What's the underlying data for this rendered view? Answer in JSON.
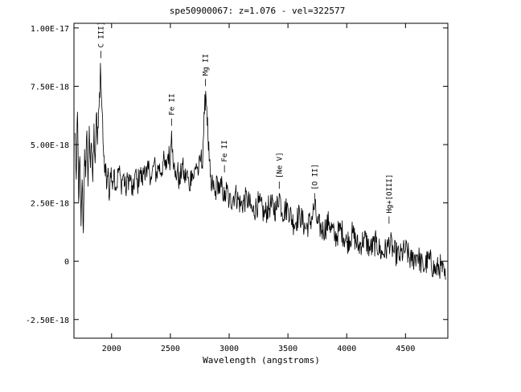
{
  "chart_data": {
    "type": "line",
    "title": "spe50900067: z=1.076 - vel=322577",
    "xlabel": "Wavelength (angstroms)",
    "ylabel": "",
    "xlim": [
      1680,
      4860
    ],
    "ylim": [
      -3.3e-18,
      1.02e-17
    ],
    "xticks": [
      {
        "value": 2000,
        "label": "2000"
      },
      {
        "value": 2500,
        "label": "2500"
      },
      {
        "value": 3000,
        "label": "3000"
      },
      {
        "value": 3500,
        "label": "3500"
      },
      {
        "value": 4000,
        "label": "4000"
      },
      {
        "value": 4500,
        "label": "4500"
      }
    ],
    "yticks": [
      {
        "value": 1e-17,
        "label": "1.00E-17"
      },
      {
        "value": 7.5e-18,
        "label": "7.50E-18"
      },
      {
        "value": 5e-18,
        "label": "5.00E-18"
      },
      {
        "value": 2.5e-18,
        "label": "2.50E-18"
      },
      {
        "value": 0,
        "label": "0"
      },
      {
        "value": -2.5e-18,
        "label": "-2.50E-18"
      }
    ],
    "grid": false,
    "legend": "none",
    "series": [
      {
        "color": "#000000",
        "x": [
          1690,
          1700,
          1710,
          1720,
          1730,
          1740,
          1750,
          1760,
          1770,
          1780,
          1790,
          1800,
          1810,
          1820,
          1830,
          1840,
          1850,
          1860,
          1870,
          1880,
          1890,
          1900,
          1905,
          1910,
          1915,
          1920,
          1930,
          1940,
          1950,
          1960,
          1970,
          1980,
          1990,
          2000,
          2020,
          2040,
          2060,
          2080,
          2100,
          2120,
          2140,
          2160,
          2180,
          2200,
          2220,
          2240,
          2260,
          2280,
          2300,
          2320,
          2340,
          2360,
          2380,
          2400,
          2420,
          2440,
          2460,
          2480,
          2500,
          2510,
          2520,
          2530,
          2540,
          2560,
          2580,
          2600,
          2620,
          2640,
          2660,
          2680,
          2700,
          2720,
          2740,
          2760,
          2770,
          2780,
          2790,
          2800,
          2810,
          2820,
          2830,
          2840,
          2850,
          2860,
          2880,
          2900,
          2920,
          2940,
          2960,
          2980,
          3000,
          3050,
          3100,
          3150,
          3200,
          3250,
          3300,
          3350,
          3400,
          3426,
          3450,
          3500,
          3550,
          3600,
          3650,
          3700,
          3727,
          3750,
          3800,
          3850,
          3900,
          3950,
          4000,
          4050,
          4100,
          4150,
          4200,
          4250,
          4300,
          4350,
          4360,
          4400,
          4450,
          4500,
          4550,
          4600,
          4650,
          4700,
          4750,
          4800,
          4840
        ],
        "y": [
          5.5e-18,
          3.5e-18,
          6.4e-18,
          2.5e-18,
          4.5e-18,
          1.5e-18,
          3.5e-18,
          1.2e-18,
          4.8e-18,
          3.6e-18,
          5.6e-18,
          3.2e-18,
          5.8e-18,
          4e-18,
          5e-18,
          3.4e-18,
          5.9e-18,
          4.2e-18,
          6.3e-18,
          5e-18,
          6.5e-18,
          7e-18,
          8.5e-18,
          7.6e-18,
          6.8e-18,
          6.4e-18,
          4.8e-18,
          3.8e-18,
          4.2e-18,
          3.2e-18,
          4e-18,
          2.6e-18,
          3.8e-18,
          3.4e-18,
          3.9e-18,
          3.1e-18,
          4e-18,
          3.3e-18,
          3.7e-18,
          3e-18,
          3.6e-18,
          3.5e-18,
          2.8e-18,
          3.8e-18,
          3.2e-18,
          3.9e-18,
          3.4e-18,
          4.1e-18,
          3.6e-18,
          4e-18,
          3.5e-18,
          4.2e-18,
          3.7e-18,
          4.1e-18,
          3.8e-18,
          4.3e-18,
          3.9e-18,
          4.6e-18,
          4.4e-18,
          5.6e-18,
          4.8e-18,
          4.1e-18,
          3.6e-18,
          3.9e-18,
          3.3e-18,
          4.2e-18,
          3.5e-18,
          3.8e-18,
          3.1e-18,
          3.9e-18,
          3.6e-18,
          4.2e-18,
          3.8e-18,
          4.5e-18,
          4.1e-18,
          5.2e-18,
          6.3e-18,
          7.3e-18,
          6.6e-18,
          5.3e-18,
          4.3e-18,
          3.6e-18,
          3e-18,
          3.4e-18,
          2.8e-18,
          3.5e-18,
          2.9e-18,
          3.3e-18,
          2.6e-18,
          3.1e-18,
          2.5e-18,
          2.9e-18,
          2.4e-18,
          2.7e-18,
          2.1e-18,
          2.5e-18,
          2e-18,
          2.4e-18,
          2.2e-18,
          2.9e-18,
          2.1e-18,
          2.3e-18,
          1.6e-18,
          2e-18,
          1.4e-18,
          1.8e-18,
          2.4e-18,
          1.6e-18,
          1.3e-18,
          1.7e-18,
          1e-18,
          1.4e-18,
          8e-19,
          1.2e-18,
          6e-19,
          1e-18,
          5e-19,
          8e-19,
          3e-19,
          6e-19,
          9e-19,
          4e-19,
          2e-19,
          5e-19,
          0.0,
          3e-19,
          -3e-19,
          1e-19,
          -4e-19,
          -2e-19,
          -8e-19
        ]
      }
    ],
    "annotations": [
      {
        "text": "C III]",
        "x": 1909,
        "y": 8.5e-18
      },
      {
        "text": "Fe II",
        "x": 2510,
        "y": 5.6e-18
      },
      {
        "text": "Mg II",
        "x": 2798,
        "y": 7.3e-18
      },
      {
        "text": "Fe II",
        "x": 2960,
        "y": 3.6e-18
      },
      {
        "text": "[Ne V]",
        "x": 3426,
        "y": 2.9e-18
      },
      {
        "text": "[O II]",
        "x": 3727,
        "y": 2.4e-18
      },
      {
        "text": "Hg+[OIII]",
        "x": 4360,
        "y": 1.4e-18
      }
    ]
  }
}
